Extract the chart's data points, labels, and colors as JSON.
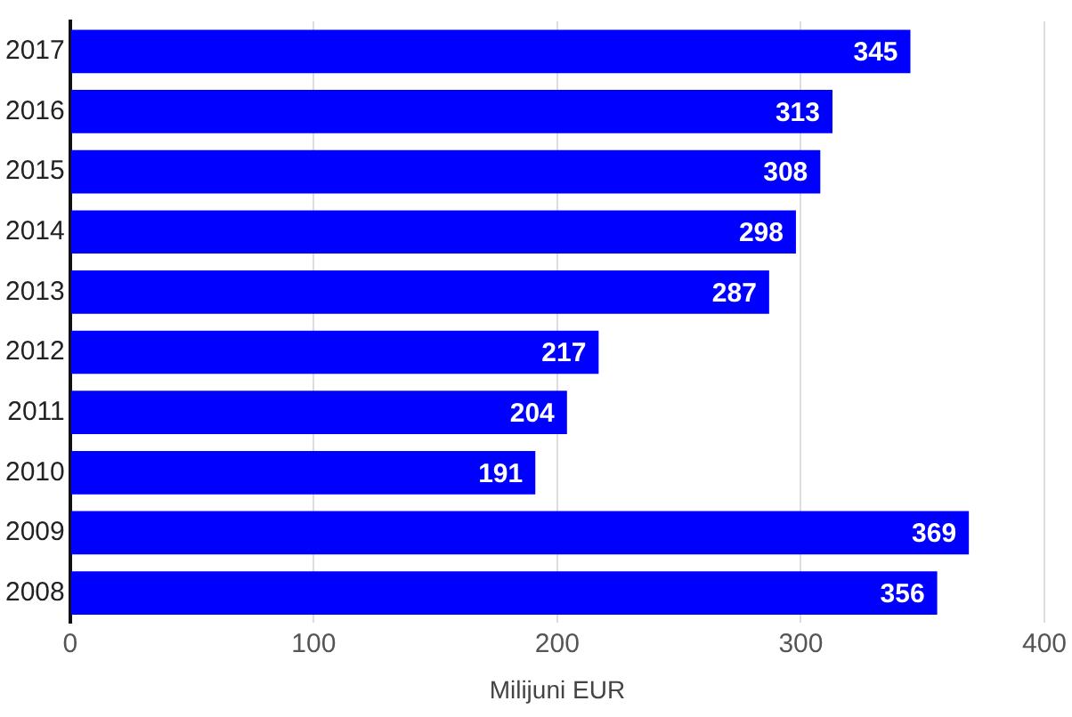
{
  "chart_data": {
    "type": "bar",
    "orientation": "horizontal",
    "xlabel": "Milijuni EUR",
    "categories": [
      "2017",
      "2016",
      "2015",
      "2014",
      "2013",
      "2012",
      "2011",
      "2010",
      "2009",
      "2008"
    ],
    "values": [
      345,
      313,
      308,
      298,
      287,
      217,
      204,
      191,
      369,
      356
    ],
    "color": "#0000ff",
    "xlim": [
      0,
      400
    ],
    "xticks": [
      0,
      100,
      200,
      300,
      400
    ],
    "grid": "x",
    "data_labels": true,
    "legend": false
  }
}
